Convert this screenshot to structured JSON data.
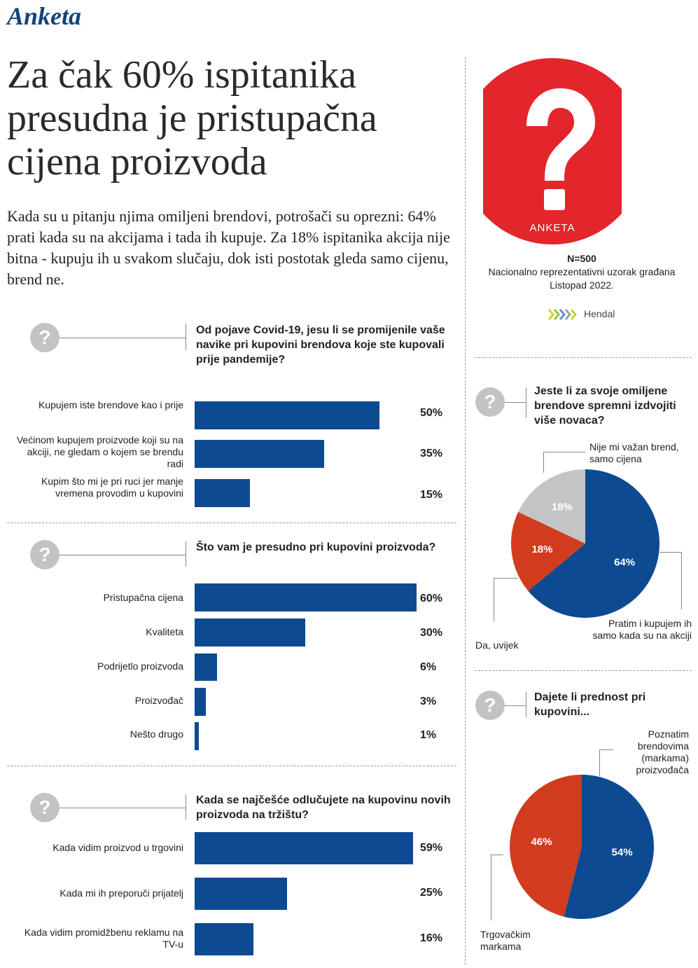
{
  "kicker": "Anketa",
  "headline": "Za čak 60% ispitanika presudna je pristupačna cijena proizvoda",
  "lede": "Kada su u pitanju njima omiljeni brendovi, potrošači su oprezni: 64% prati kada su na akcijama i tada ih kupuje. Za 18% ispitanika akcija nije bitna - kupuju ih u svakom slučaju, dok isti postotak gleda samo cijenu, brend ne.",
  "question_icon": "?",
  "badge": {
    "icon": "question-mark-icon",
    "label": "ANKETA",
    "color": "#e2262b"
  },
  "survey": {
    "n": "N=500",
    "sample": "Nacionalno reprezentativni uzorak građana",
    "date": "Listopad 2022."
  },
  "brand": {
    "name": "Hendal"
  },
  "colors": {
    "blue": "#0d4a91",
    "red": "#d13b1e",
    "gray": "#c3c4c6",
    "icon_gray": "#c3c3c3"
  },
  "chart_data": [
    {
      "type": "bar",
      "title": "Od pojave Covid-19, jesu li se promijenile vaše navike pri kupovini brendova koje ste kupovali prije pandemije?",
      "categories": [
        "Kupujem iste brendove kao i prije",
        "Većinom kupujem proizvode koji su na akciji, ne gledam o kojem se brendu radi",
        "Kupim što mi je pri ruci jer manje vremena provodim u kupovini"
      ],
      "values": [
        50,
        35,
        15
      ],
      "labels": [
        "50%",
        "35%",
        "15%"
      ]
    },
    {
      "type": "bar",
      "title": "Što vam je presudno pri kupovini proizvoda?",
      "categories": [
        "Pristupačna cijena",
        "Kvaliteta",
        "Podrijetlo proizvoda",
        "Proizvođač",
        "Nešto drugo"
      ],
      "values": [
        60,
        30,
        6,
        3,
        1
      ],
      "labels": [
        "60%",
        "30%",
        "6%",
        "3%",
        "1%"
      ]
    },
    {
      "type": "bar",
      "title": "Kada se najčešće odlučujete na kupovinu novih proizvoda na tržištu?",
      "categories": [
        "Kada vidim proizvod u trgovini",
        "Kada mi ih preporuči prijatelj",
        "Kada vidim promidžbenu reklamu na TV-u"
      ],
      "values": [
        59,
        25,
        16
      ],
      "labels": [
        "59%",
        "25%",
        "16%"
      ]
    },
    {
      "type": "pie",
      "title": "Jeste li za svoje omiljene brendove spremni izdvojiti više novaca?",
      "categories": [
        "Pratim i kupujem ih samo kada su na akciji",
        "Da, uvijek",
        "Nije mi važan brend, samo cijena"
      ],
      "values": [
        64,
        18,
        18
      ],
      "labels": [
        "64%",
        "18%",
        "18%"
      ],
      "colors": [
        "#0d4a91",
        "#d13b1e",
        "#c3c4c6"
      ]
    },
    {
      "type": "pie",
      "title": "Dajete li prednost pri kupovini...",
      "categories": [
        "Poznatim brendovima (markama) proizvođača",
        "Trgovačkim markama"
      ],
      "values": [
        54,
        46
      ],
      "labels": [
        "54%",
        "46%"
      ],
      "colors": [
        "#0d4a91",
        "#d13b1e"
      ]
    }
  ]
}
